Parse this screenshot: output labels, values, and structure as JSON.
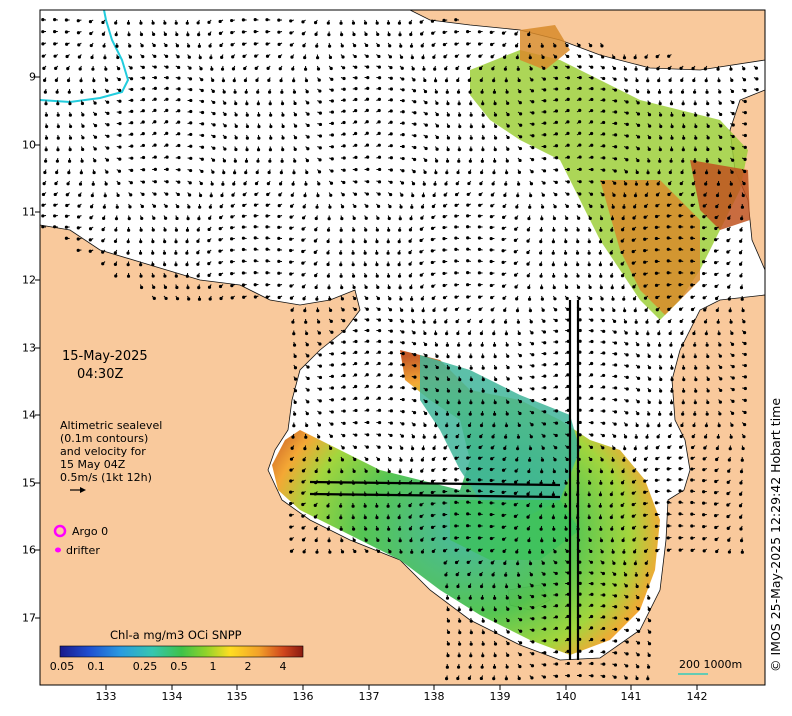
{
  "date_label": "15-May-2025",
  "time_label": "04:30Z",
  "legend": {
    "altimetry_lines": [
      "Altimetric sealevel",
      "(0.1m contours)",
      "and velocity for",
      "15 May 04Z",
      "0.5m/s (1kt 12h)"
    ],
    "argo_label": "Argo 0",
    "drifter_label": "drifter"
  },
  "colorbar": {
    "title": "Chl-a mg/m3 OCi SNPP",
    "ticks": [
      "0.05",
      "0.1",
      "0.25",
      "0.5",
      "1",
      "2",
      "4"
    ]
  },
  "x_axis_labels": [
    "133",
    "134",
    "135",
    "136",
    "137",
    "138",
    "139",
    "140",
    "141",
    "142"
  ],
  "y_axis_labels": [
    "9",
    "10",
    "11",
    "12",
    "13",
    "14",
    "15",
    "16",
    "17"
  ],
  "scale_bar_label": "200  1000m",
  "credit": "© IMOS 25-May-2025 12:29:42 Hobart time",
  "colors": {
    "land": "#f9c99c",
    "sea": "#ffffff",
    "cyan_line": "#22ccdd",
    "argo": "#ff00ff",
    "scale": "#33ccbb"
  }
}
